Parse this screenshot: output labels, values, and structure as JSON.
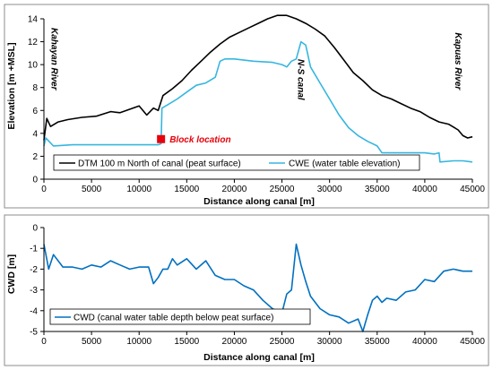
{
  "chart_data": [
    {
      "type": "line",
      "xlabel": "Distance along canal [m]",
      "ylabel": "Elevation [m +MSL]",
      "xlim": [
        0,
        45000
      ],
      "ylim": [
        0,
        14
      ],
      "xticks": [
        "0",
        "5000",
        "10000",
        "15000",
        "20000",
        "25000",
        "30000",
        "35000",
        "40000",
        "45000"
      ],
      "yticks": [
        "0",
        "2",
        "4",
        "6",
        "8",
        "10",
        "12",
        "14"
      ],
      "grid": "none",
      "legend_position": "bottom",
      "annotations": [
        {
          "text": "Kahayan River",
          "x": 800,
          "y": 10.5,
          "rotate": 90
        },
        {
          "text": "N-S canal",
          "x": 26700,
          "y": 8.7,
          "rotate": 90
        },
        {
          "text": "Kapuas River",
          "x": 43200,
          "y": 10.3,
          "rotate": 90
        },
        {
          "text": "Block location",
          "x": 13200,
          "y": 3.5,
          "rotate": 0,
          "color": "#e8000b"
        }
      ],
      "marker": {
        "name": "Block location",
        "x": 12300,
        "y": 3.5,
        "color": "#e8000b"
      },
      "series": [
        {
          "name": "DTM 100 m North of canal (peat surface)",
          "color": "#000000",
          "x": [
            0,
            300,
            700,
            1500,
            2500,
            4000,
            5500,
            7000,
            8000,
            9000,
            10000,
            10800,
            11500,
            12000,
            12500,
            13500,
            14500,
            15500,
            16500,
            17500,
            18500,
            19500,
            20500,
            21500,
            22500,
            23500,
            24500,
            25500,
            26500,
            27500,
            28500,
            29500,
            30500,
            31500,
            32500,
            33500,
            34500,
            35500,
            36500,
            37500,
            38500,
            39500,
            40500,
            41500,
            42500,
            43500,
            44000,
            44500,
            45000
          ],
          "values": [
            3.4,
            5.3,
            4.6,
            5.0,
            5.2,
            5.4,
            5.5,
            5.9,
            5.8,
            6.1,
            6.4,
            5.6,
            6.2,
            6.0,
            7.3,
            7.9,
            8.6,
            9.5,
            10.3,
            11.1,
            11.8,
            12.4,
            12.8,
            13.2,
            13.6,
            14.0,
            14.3,
            14.3,
            14.0,
            13.6,
            13.1,
            12.5,
            11.5,
            10.4,
            9.3,
            8.6,
            7.8,
            7.3,
            7.0,
            6.6,
            6.2,
            5.9,
            5.4,
            5.0,
            4.8,
            4.3,
            3.8,
            3.6,
            3.7
          ]
        },
        {
          "name": "CWE (water table elevation)",
          "color": "#36b6e0",
          "x": [
            0,
            200,
            1000,
            3000,
            5000,
            8000,
            10000,
            11000,
            12000,
            12300,
            12400,
            13000,
            14000,
            15000,
            16000,
            17000,
            18000,
            18500,
            19000,
            20000,
            22000,
            24000,
            25000,
            25500,
            26000,
            26500,
            27000,
            27500,
            28000,
            29000,
            30000,
            31000,
            32000,
            33000,
            34000,
            35000,
            35500,
            36000,
            38000,
            40000,
            41000,
            41500,
            41600,
            43000,
            44000,
            45000
          ],
          "values": [
            2.9,
            3.6,
            2.9,
            3.0,
            3.0,
            3.0,
            3.0,
            3.0,
            3.0,
            3.1,
            6.2,
            6.5,
            7.0,
            7.6,
            8.2,
            8.4,
            8.9,
            10.3,
            10.5,
            10.5,
            10.3,
            10.2,
            10.0,
            9.8,
            10.3,
            10.5,
            12.0,
            11.7,
            9.8,
            8.4,
            7.0,
            5.6,
            4.5,
            3.8,
            3.3,
            2.9,
            2.3,
            2.3,
            2.3,
            2.3,
            2.2,
            2.3,
            1.5,
            1.6,
            1.6,
            1.5
          ]
        }
      ]
    },
    {
      "type": "line",
      "xlabel": "Distance along canal [m]",
      "ylabel": "CWD [m]",
      "xlim": [
        0,
        45000
      ],
      "ylim": [
        -5,
        0
      ],
      "xticks": [
        "0",
        "5000",
        "10000",
        "15000",
        "20000",
        "25000",
        "30000",
        "35000",
        "40000",
        "45000"
      ],
      "yticks": [
        "0",
        "-1",
        "-2",
        "-3",
        "-4",
        "-5"
      ],
      "grid": "none",
      "legend_position": "bottom-left",
      "series": [
        {
          "name": "CWD (canal water table depth below peat surface)",
          "color": "#0070c0",
          "x": [
            0,
            500,
            1000,
            2000,
            3000,
            4000,
            5000,
            6000,
            7000,
            8000,
            9000,
            10000,
            11000,
            11500,
            12000,
            12500,
            13000,
            13500,
            14000,
            15000,
            16000,
            17000,
            18000,
            19000,
            20000,
            21000,
            22000,
            23000,
            24000,
            25000,
            25500,
            26000,
            26500,
            27000,
            27500,
            28000,
            29000,
            30000,
            31000,
            32000,
            33000,
            33500,
            34000,
            34500,
            35000,
            35500,
            36000,
            37000,
            38000,
            39000,
            40000,
            41000,
            42000,
            43000,
            44000,
            45000
          ],
          "values": [
            -0.8,
            -2.0,
            -1.3,
            -1.9,
            -1.9,
            -2.0,
            -1.8,
            -1.9,
            -1.6,
            -1.8,
            -2.0,
            -1.9,
            -1.9,
            -2.7,
            -2.4,
            -2.0,
            -2.0,
            -1.5,
            -1.8,
            -1.5,
            -2.0,
            -1.6,
            -2.3,
            -2.5,
            -2.5,
            -2.8,
            -3.0,
            -3.5,
            -3.9,
            -4.1,
            -3.2,
            -3.0,
            -0.8,
            -1.8,
            -2.6,
            -3.3,
            -3.9,
            -4.2,
            -4.3,
            -4.6,
            -4.4,
            -5.0,
            -4.2,
            -3.5,
            -3.3,
            -3.6,
            -3.4,
            -3.5,
            -3.1,
            -3.0,
            -2.5,
            -2.6,
            -2.1,
            -2.0,
            -2.1,
            -2.1
          ]
        }
      ]
    }
  ]
}
